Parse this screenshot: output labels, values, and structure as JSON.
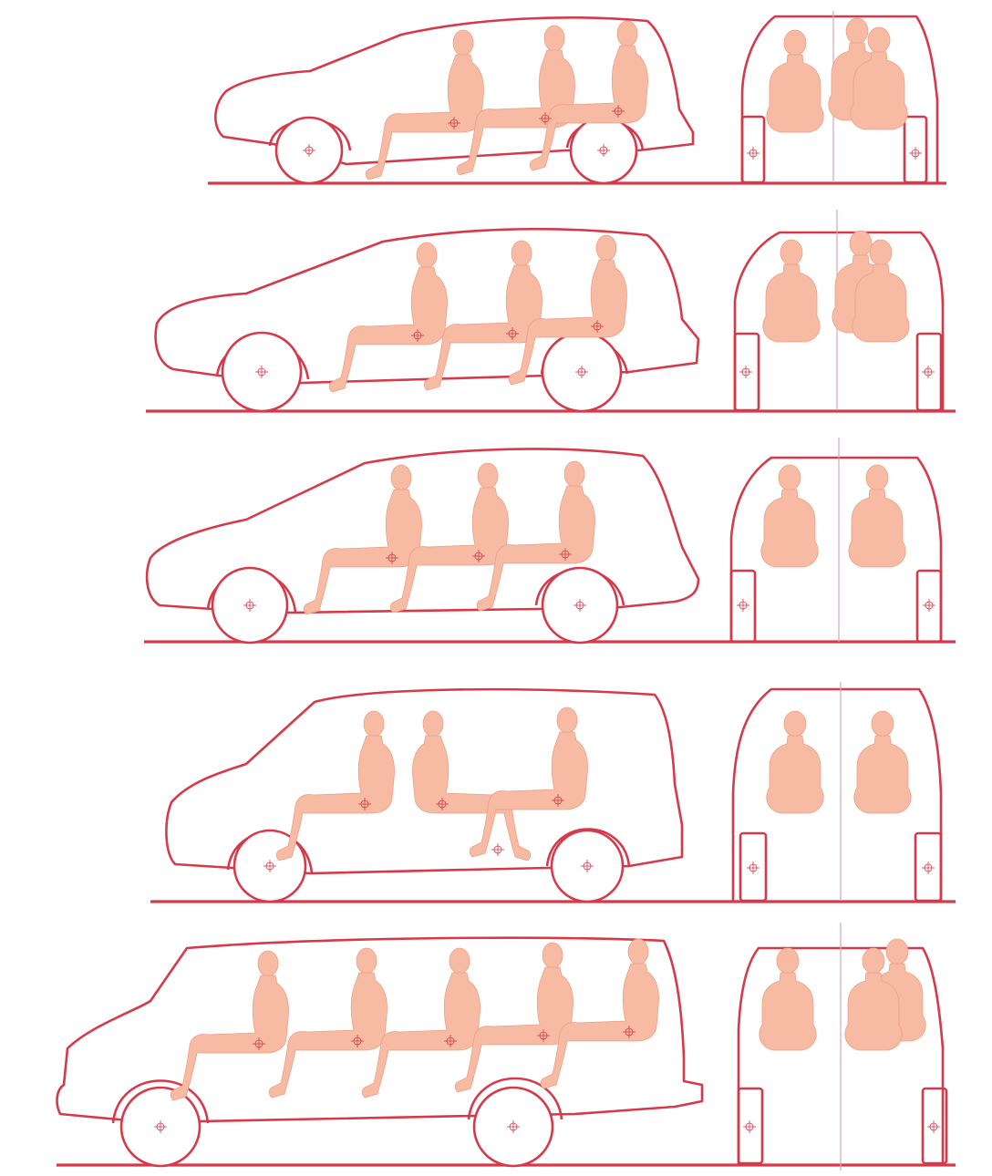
{
  "colors": {
    "line": "#d63a4a",
    "skin": "#f6bba2",
    "skin_edge": "#ee9f86",
    "background": "#ffffff"
  },
  "rows": [
    {
      "id": "row-1",
      "side_seats": 3,
      "front_occupants": 3
    },
    {
      "id": "row-2",
      "side_seats": 3,
      "front_occupants": 3
    },
    {
      "id": "row-3",
      "side_seats": 3,
      "front_occupants": 2
    },
    {
      "id": "row-4",
      "side_seats": 3,
      "front_occupants": 2
    },
    {
      "id": "row-5",
      "side_seats": 5,
      "front_occupants": 3
    }
  ]
}
